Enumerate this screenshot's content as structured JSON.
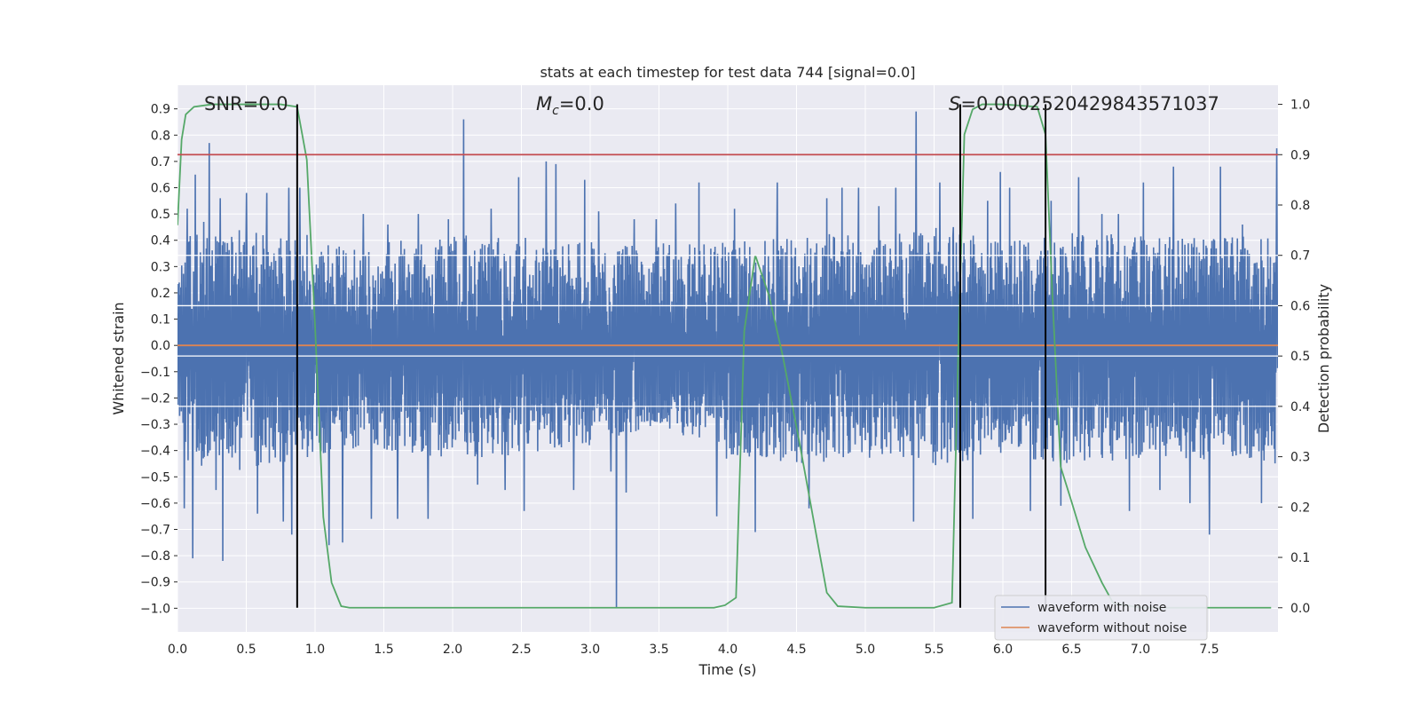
{
  "chart_data": {
    "type": "line",
    "title": "stats at each timestep for test data 744 [signal=0.0]",
    "xlabel": "Time (s)",
    "ylabel": "Whitened strain",
    "y2label": "Detection probability",
    "xlim": [
      0.0,
      8.0
    ],
    "ylim": [
      -1.09,
      0.99
    ],
    "y2lim": [
      -0.048,
      1.038
    ],
    "x_ticks": [
      0.0,
      0.5,
      1.0,
      1.5,
      2.0,
      2.5,
      3.0,
      3.5,
      4.0,
      4.5,
      5.0,
      5.5,
      6.0,
      6.5,
      7.0,
      7.5
    ],
    "x_tick_labels": [
      "0.0",
      "0.5",
      "1.0",
      "1.5",
      "2.0",
      "2.5",
      "3.0",
      "3.5",
      "4.0",
      "4.5",
      "5.0",
      "5.5",
      "6.0",
      "6.5",
      "7.0",
      "7.5"
    ],
    "y_ticks": [
      0.9,
      0.8,
      0.7,
      0.6,
      0.5,
      0.4,
      0.3,
      0.2,
      0.1,
      0.0,
      -0.1,
      -0.2,
      -0.3,
      -0.4,
      -0.5,
      -0.6,
      -0.7,
      -0.8,
      -0.9,
      -1.0
    ],
    "y_tick_labels": [
      "0.9",
      "0.8",
      "0.7",
      "0.6",
      "0.5",
      "0.4",
      "0.3",
      "0.2",
      "0.1",
      "0.0",
      "−0.1",
      "−0.2",
      "−0.3",
      "−0.4",
      "−0.5",
      "−0.6",
      "−0.7",
      "−0.8",
      "−0.9",
      "−1.0"
    ],
    "y2_ticks": [
      1.0,
      0.9,
      0.8,
      0.7,
      0.6,
      0.5,
      0.4,
      0.3,
      0.2,
      0.1,
      0.0
    ],
    "y2_tick_labels": [
      "1.0",
      "0.9",
      "0.8",
      "0.7",
      "0.6",
      "0.5",
      "0.4",
      "0.3",
      "0.2",
      "0.1",
      "0.0"
    ],
    "grid": true,
    "legend_position": "lower-right",
    "annotations": {
      "snr_label": "SNR=0.0",
      "mc_label_main": "M",
      "mc_label_sub": "c",
      "mc_label_value": "=0.0",
      "s_label_main": "S",
      "s_label_value": "=0.00025204298435710",
      "s_label_value_tail": "37"
    },
    "noise_envelope": {
      "x": [
        0.0,
        0.5,
        1.0,
        1.5,
        2.0,
        2.5,
        3.0,
        3.5,
        4.0,
        4.5,
        5.0,
        5.5,
        6.0,
        6.5,
        7.0,
        7.5,
        8.0
      ],
      "upper": [
        0.42,
        0.45,
        0.38,
        0.4,
        0.42,
        0.41,
        0.4,
        0.39,
        0.4,
        0.43,
        0.42,
        0.45,
        0.4,
        0.43,
        0.42,
        0.41,
        0.42
      ],
      "lower": [
        -0.45,
        -0.48,
        -0.42,
        -0.4,
        -0.43,
        -0.42,
        -0.38,
        -0.3,
        -0.44,
        -0.45,
        -0.44,
        -0.46,
        -0.42,
        -0.45,
        -0.43,
        -0.44,
        -0.45
      ],
      "spikes": [
        [
          0.05,
          -0.62
        ],
        [
          0.07,
          0.52
        ],
        [
          0.11,
          -0.81
        ],
        [
          0.13,
          0.65
        ],
        [
          0.19,
          0.47
        ],
        [
          0.23,
          0.77
        ],
        [
          0.28,
          -0.55
        ],
        [
          0.31,
          0.56
        ],
        [
          0.33,
          -0.82
        ],
        [
          0.5,
          0.58
        ],
        [
          0.58,
          -0.64
        ],
        [
          0.65,
          0.58
        ],
        [
          0.77,
          -0.67
        ],
        [
          0.81,
          0.6
        ],
        [
          0.83,
          -0.72
        ],
        [
          0.89,
          0.6
        ],
        [
          0.94,
          0.42
        ],
        [
          1.1,
          -0.76
        ],
        [
          1.2,
          -0.75
        ],
        [
          1.35,
          0.5
        ],
        [
          1.41,
          -0.66
        ],
        [
          1.53,
          0.46
        ],
        [
          1.6,
          -0.66
        ],
        [
          1.75,
          0.5
        ],
        [
          1.82,
          -0.66
        ],
        [
          1.97,
          0.48
        ],
        [
          2.08,
          0.86
        ],
        [
          2.18,
          -0.53
        ],
        [
          2.28,
          0.52
        ],
        [
          2.38,
          -0.55
        ],
        [
          2.48,
          0.64
        ],
        [
          2.52,
          -0.63
        ],
        [
          2.68,
          0.7
        ],
        [
          2.75,
          0.69
        ],
        [
          2.88,
          -0.55
        ],
        [
          2.96,
          0.63
        ],
        [
          3.06,
          0.51
        ],
        [
          3.15,
          -0.48
        ],
        [
          3.19,
          -1.0
        ],
        [
          3.26,
          -0.56
        ],
        [
          3.32,
          0.48
        ],
        [
          3.48,
          0.48
        ],
        [
          3.62,
          0.54
        ],
        [
          3.79,
          0.62
        ],
        [
          3.92,
          -0.65
        ],
        [
          4.05,
          0.52
        ],
        [
          4.2,
          -0.71
        ],
        [
          4.36,
          0.62
        ],
        [
          4.46,
          0.4
        ],
        [
          4.59,
          -0.62
        ],
        [
          4.72,
          0.56
        ],
        [
          4.83,
          0.6
        ],
        [
          4.95,
          0.6
        ],
        [
          5.1,
          0.53
        ],
        [
          5.22,
          0.6
        ],
        [
          5.35,
          -0.67
        ],
        [
          5.37,
          0.89
        ],
        [
          5.54,
          0.62
        ],
        [
          5.64,
          0.45
        ],
        [
          5.78,
          -0.66
        ],
        [
          5.89,
          0.55
        ],
        [
          5.98,
          0.66
        ],
        [
          6.05,
          0.6
        ],
        [
          6.2,
          -0.63
        ],
        [
          6.35,
          0.55
        ],
        [
          6.42,
          -0.61
        ],
        [
          6.55,
          0.64
        ],
        [
          6.72,
          0.5
        ],
        [
          6.84,
          0.5
        ],
        [
          6.92,
          -0.63
        ],
        [
          7.02,
          0.62
        ],
        [
          7.14,
          -0.55
        ],
        [
          7.24,
          0.68
        ],
        [
          7.36,
          -0.6
        ],
        [
          7.5,
          -0.72
        ],
        [
          7.58,
          0.68
        ],
        [
          7.74,
          0.46
        ],
        [
          7.88,
          -0.6
        ],
        [
          7.99,
          0.75
        ]
      ]
    },
    "series": [
      {
        "name": "waveform with noise",
        "color": "#4c72b0",
        "axis": "left"
      },
      {
        "name": "waveform without noise",
        "color": "#dd8452",
        "axis": "left",
        "x": [
          0.0,
          8.0
        ],
        "y": [
          0.0,
          0.0
        ]
      },
      {
        "color": "#55a868",
        "axis": "right",
        "x": [
          0.0,
          0.03,
          0.06,
          0.12,
          0.25,
          0.5,
          0.75,
          0.87,
          0.94,
          1.0,
          1.06,
          1.12,
          1.19,
          1.25,
          1.5,
          2.0,
          2.5,
          3.0,
          3.5,
          3.9,
          3.98,
          4.06,
          4.12,
          4.2,
          4.3,
          4.4,
          4.52,
          4.62,
          4.72,
          4.8,
          5.0,
          5.5,
          5.63,
          5.68,
          5.72,
          5.78,
          5.85,
          6.0,
          6.25,
          6.31,
          6.36,
          6.42,
          6.5,
          6.6,
          6.72,
          6.8,
          7.0,
          7.5,
          7.95
        ],
        "y": [
          0.76,
          0.93,
          0.98,
          0.995,
          1.0,
          1.0,
          1.0,
          0.995,
          0.89,
          0.56,
          0.18,
          0.05,
          0.003,
          0.0,
          0.0,
          0.0,
          0.0,
          0.0,
          0.0,
          0.0,
          0.005,
          0.02,
          0.55,
          0.7,
          0.62,
          0.5,
          0.33,
          0.18,
          0.03,
          0.003,
          0.0,
          0.0,
          0.01,
          0.55,
          0.94,
          0.99,
          1.0,
          1.0,
          0.995,
          0.94,
          0.62,
          0.28,
          0.21,
          0.12,
          0.05,
          0.01,
          0.0,
          0.0,
          0.0
        ]
      },
      {
        "color": "#c44e52",
        "axis": "right",
        "x": [
          0.0,
          8.0
        ],
        "y": [
          0.9,
          0.9
        ]
      },
      {
        "color": "#ffffff",
        "axis": "right",
        "x": [
          0.0,
          8.0
        ],
        "y": [
          0.7,
          0.7
        ]
      },
      {
        "color": "#ffffff",
        "axis": "right",
        "x": [
          0.0,
          8.0
        ],
        "y": [
          0.6,
          0.6
        ]
      },
      {
        "color": "#ffffff",
        "axis": "right",
        "x": [
          0.0,
          8.0
        ],
        "y": [
          0.5,
          0.5
        ]
      },
      {
        "color": "#ffffff",
        "axis": "right",
        "x": [
          0.0,
          8.0
        ],
        "y": [
          0.4,
          0.4
        ]
      }
    ],
    "vertical_lines": [
      {
        "x": 0.87,
        "color": "#000000"
      },
      {
        "x": 5.69,
        "color": "#000000"
      },
      {
        "x": 6.31,
        "color": "#000000"
      }
    ]
  }
}
